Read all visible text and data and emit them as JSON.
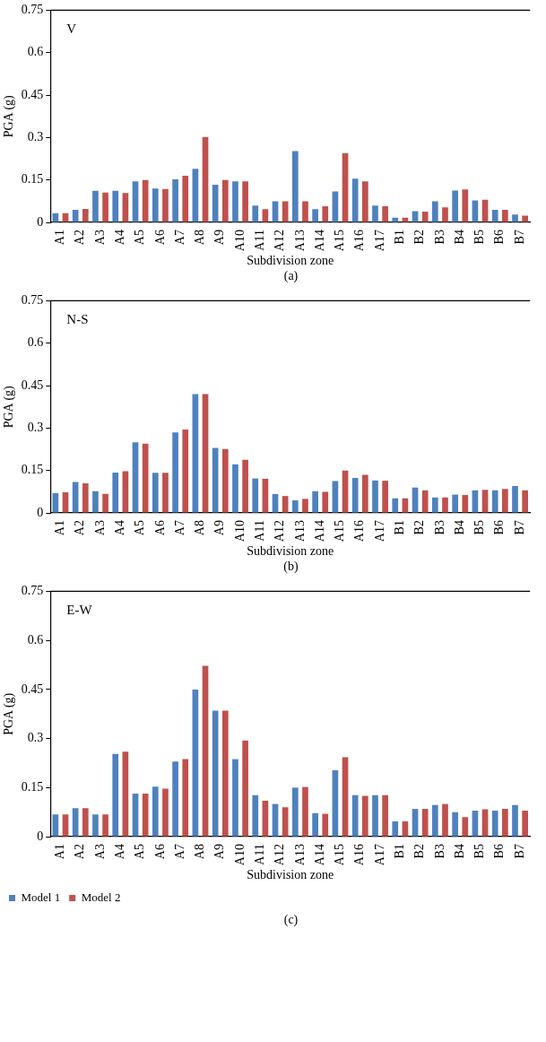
{
  "chart_data": [
    {
      "type": "bar",
      "annotations": [
        "V",
        "(a)"
      ],
      "xlabel": "Subdivision zone",
      "ylabel": "PGA (g)",
      "categories": [
        "A1",
        "A2",
        "A3",
        "A4",
        "A5",
        "A6",
        "A7",
        "A8",
        "A9",
        "A10",
        "A11",
        "A12",
        "A13",
        "A14",
        "A15",
        "A16",
        "A17",
        "B1",
        "B2",
        "B3",
        "B4",
        "B5",
        "B6",
        "B7"
      ],
      "series": [
        {
          "color": "#4f81bd",
          "values": [
            0.033,
            0.045,
            0.112,
            0.112,
            0.145,
            0.12,
            0.152,
            0.19,
            0.133,
            0.145,
            0.06,
            0.075,
            0.252,
            0.047,
            0.11,
            0.155,
            0.06,
            0.017,
            0.04,
            0.075,
            0.113,
            0.078,
            0.045,
            0.028
          ]
        },
        {
          "color": "#c0504d",
          "values": [
            0.033,
            0.048,
            0.106,
            0.104,
            0.15,
            0.118,
            0.165,
            0.302,
            0.15,
            0.145,
            0.047,
            0.075,
            0.075,
            0.057,
            0.245,
            0.145,
            0.057,
            0.017,
            0.038,
            0.053,
            0.117,
            0.08,
            0.045,
            0.024
          ]
        }
      ],
      "ylim": [
        0,
        0.75
      ],
      "yticks": [
        0,
        0.15,
        0.3,
        0.45,
        0.6,
        0.75
      ],
      "grid": false,
      "legend": false
    },
    {
      "type": "bar",
      "annotations": [
        "N-S",
        "(b)"
      ],
      "xlabel": "Subdivision zone",
      "ylabel": "PGA (g)",
      "categories": [
        "A1",
        "A2",
        "A3",
        "A4",
        "A5",
        "A6",
        "A7",
        "A8",
        "A9",
        "A10",
        "A11",
        "A12",
        "A13",
        "A14",
        "A15",
        "A16",
        "A17",
        "B1",
        "B2",
        "B3",
        "B4",
        "B5",
        "B6",
        "B7"
      ],
      "series": [
        {
          "color": "#4f81bd",
          "values": [
            0.07,
            0.11,
            0.077,
            0.143,
            0.25,
            0.142,
            0.285,
            0.42,
            0.23,
            0.172,
            0.122,
            0.067,
            0.045,
            0.077,
            0.113,
            0.124,
            0.115,
            0.052,
            0.09,
            0.055,
            0.065,
            0.08,
            0.08,
            0.095
          ]
        },
        {
          "color": "#c0504d",
          "values": [
            0.073,
            0.105,
            0.068,
            0.148,
            0.245,
            0.142,
            0.295,
            0.42,
            0.226,
            0.188,
            0.121,
            0.06,
            0.05,
            0.075,
            0.15,
            0.135,
            0.114,
            0.052,
            0.08,
            0.055,
            0.064,
            0.082,
            0.085,
            0.08
          ]
        }
      ],
      "ylim": [
        0,
        0.75
      ],
      "yticks": [
        0,
        0.15,
        0.3,
        0.45,
        0.6,
        0.75
      ],
      "grid": false,
      "legend": false
    },
    {
      "type": "bar",
      "annotations": [
        "E-W",
        "(c)"
      ],
      "xlabel": "Subdivision zone",
      "ylabel": "PGA (g)",
      "categories": [
        "A1",
        "A2",
        "A3",
        "A4",
        "A5",
        "A6",
        "A7",
        "A8",
        "A9",
        "A10",
        "A11",
        "A12",
        "A13",
        "A14",
        "A15",
        "A16",
        "A17",
        "B1",
        "B2",
        "B3",
        "B4",
        "B5",
        "B6",
        "B7"
      ],
      "series": [
        {
          "name": "Model 1",
          "color": "#4f81bd",
          "values": [
            0.068,
            0.087,
            0.068,
            0.253,
            0.132,
            0.153,
            0.23,
            0.45,
            0.385,
            0.237,
            0.127,
            0.1,
            0.15,
            0.072,
            0.203,
            0.127,
            0.127,
            0.047,
            0.085,
            0.097,
            0.075,
            0.08,
            0.08,
            0.097
          ]
        },
        {
          "name": "Model 2",
          "color": "#c0504d",
          "values": [
            0.068,
            0.087,
            0.068,
            0.26,
            0.132,
            0.147,
            0.237,
            0.522,
            0.385,
            0.294,
            0.11,
            0.09,
            0.152,
            0.07,
            0.243,
            0.125,
            0.127,
            0.047,
            0.085,
            0.1,
            0.06,
            0.084,
            0.085,
            0.08
          ]
        }
      ],
      "ylim": [
        0,
        0.75
      ],
      "yticks": [
        0,
        0.15,
        0.3,
        0.45,
        0.6,
        0.75
      ],
      "grid": false,
      "legend": "bottom left"
    }
  ]
}
